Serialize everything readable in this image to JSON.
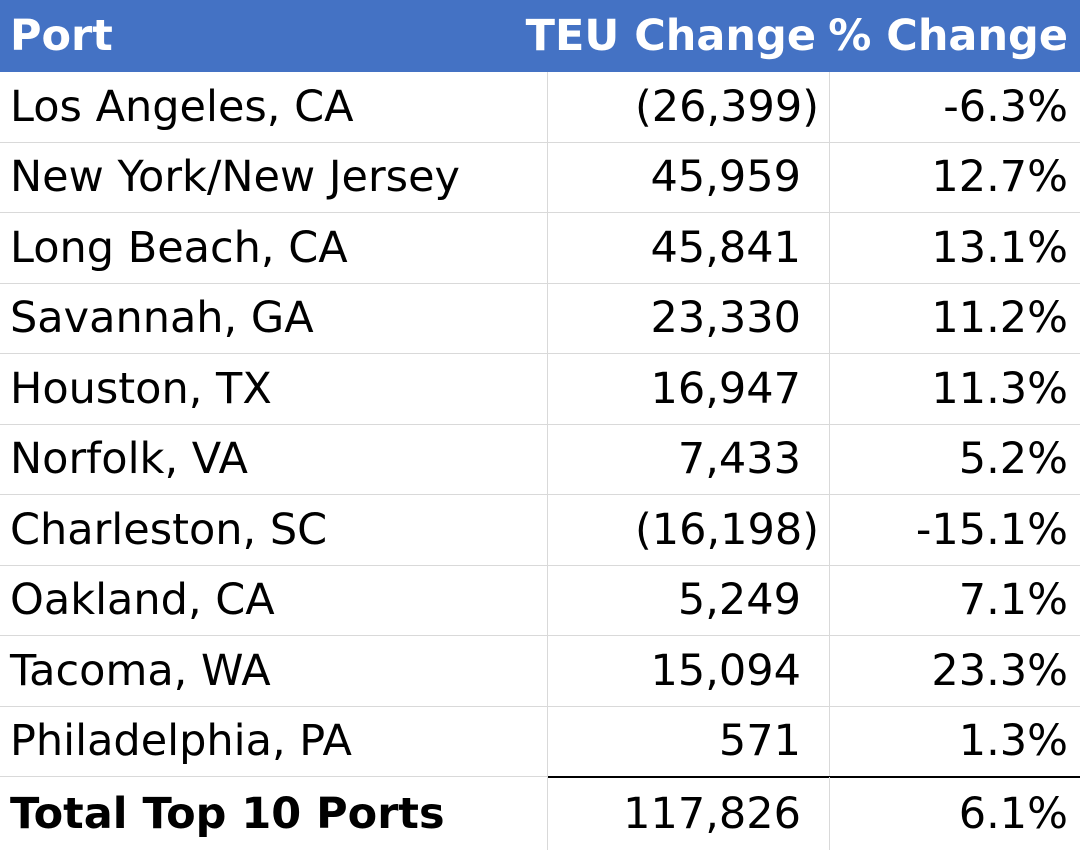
{
  "table": {
    "headers": {
      "port": "Port",
      "teu_change": "TEU Change",
      "pct_change": "% Change"
    },
    "rows": [
      {
        "port": "Los Angeles, CA",
        "teu_change": "(26,399)",
        "pct_change": "-6.3%",
        "negative": true
      },
      {
        "port": "New York/New Jersey",
        "teu_change": "45,959",
        "pct_change": "12.7%",
        "negative": false
      },
      {
        "port": "Long Beach, CA",
        "teu_change": "45,841",
        "pct_change": "13.1%",
        "negative": false
      },
      {
        "port": "Savannah, GA",
        "teu_change": "23,330",
        "pct_change": "11.2%",
        "negative": false
      },
      {
        "port": "Houston, TX",
        "teu_change": "16,947",
        "pct_change": "11.3%",
        "negative": false
      },
      {
        "port": "Norfolk, VA",
        "teu_change": "7,433",
        "pct_change": "5.2%",
        "negative": false
      },
      {
        "port": "Charleston, SC",
        "teu_change": "(16,198)",
        "pct_change": "-15.1%",
        "negative": true
      },
      {
        "port": "Oakland, CA",
        "teu_change": "5,249",
        "pct_change": "7.1%",
        "negative": false
      },
      {
        "port": "Tacoma, WA",
        "teu_change": "15,094",
        "pct_change": "23.3%",
        "negative": false
      },
      {
        "port": "Philadelphia, PA",
        "teu_change": "571",
        "pct_change": "1.3%",
        "negative": false
      }
    ],
    "total": {
      "port": "Total Top 10 Ports",
      "teu_change": "117,826",
      "pct_change": "6.1%"
    }
  },
  "colors": {
    "header_background": "#4472c4",
    "header_text": "#ffffff",
    "grid_line": "#d9d9d9"
  }
}
